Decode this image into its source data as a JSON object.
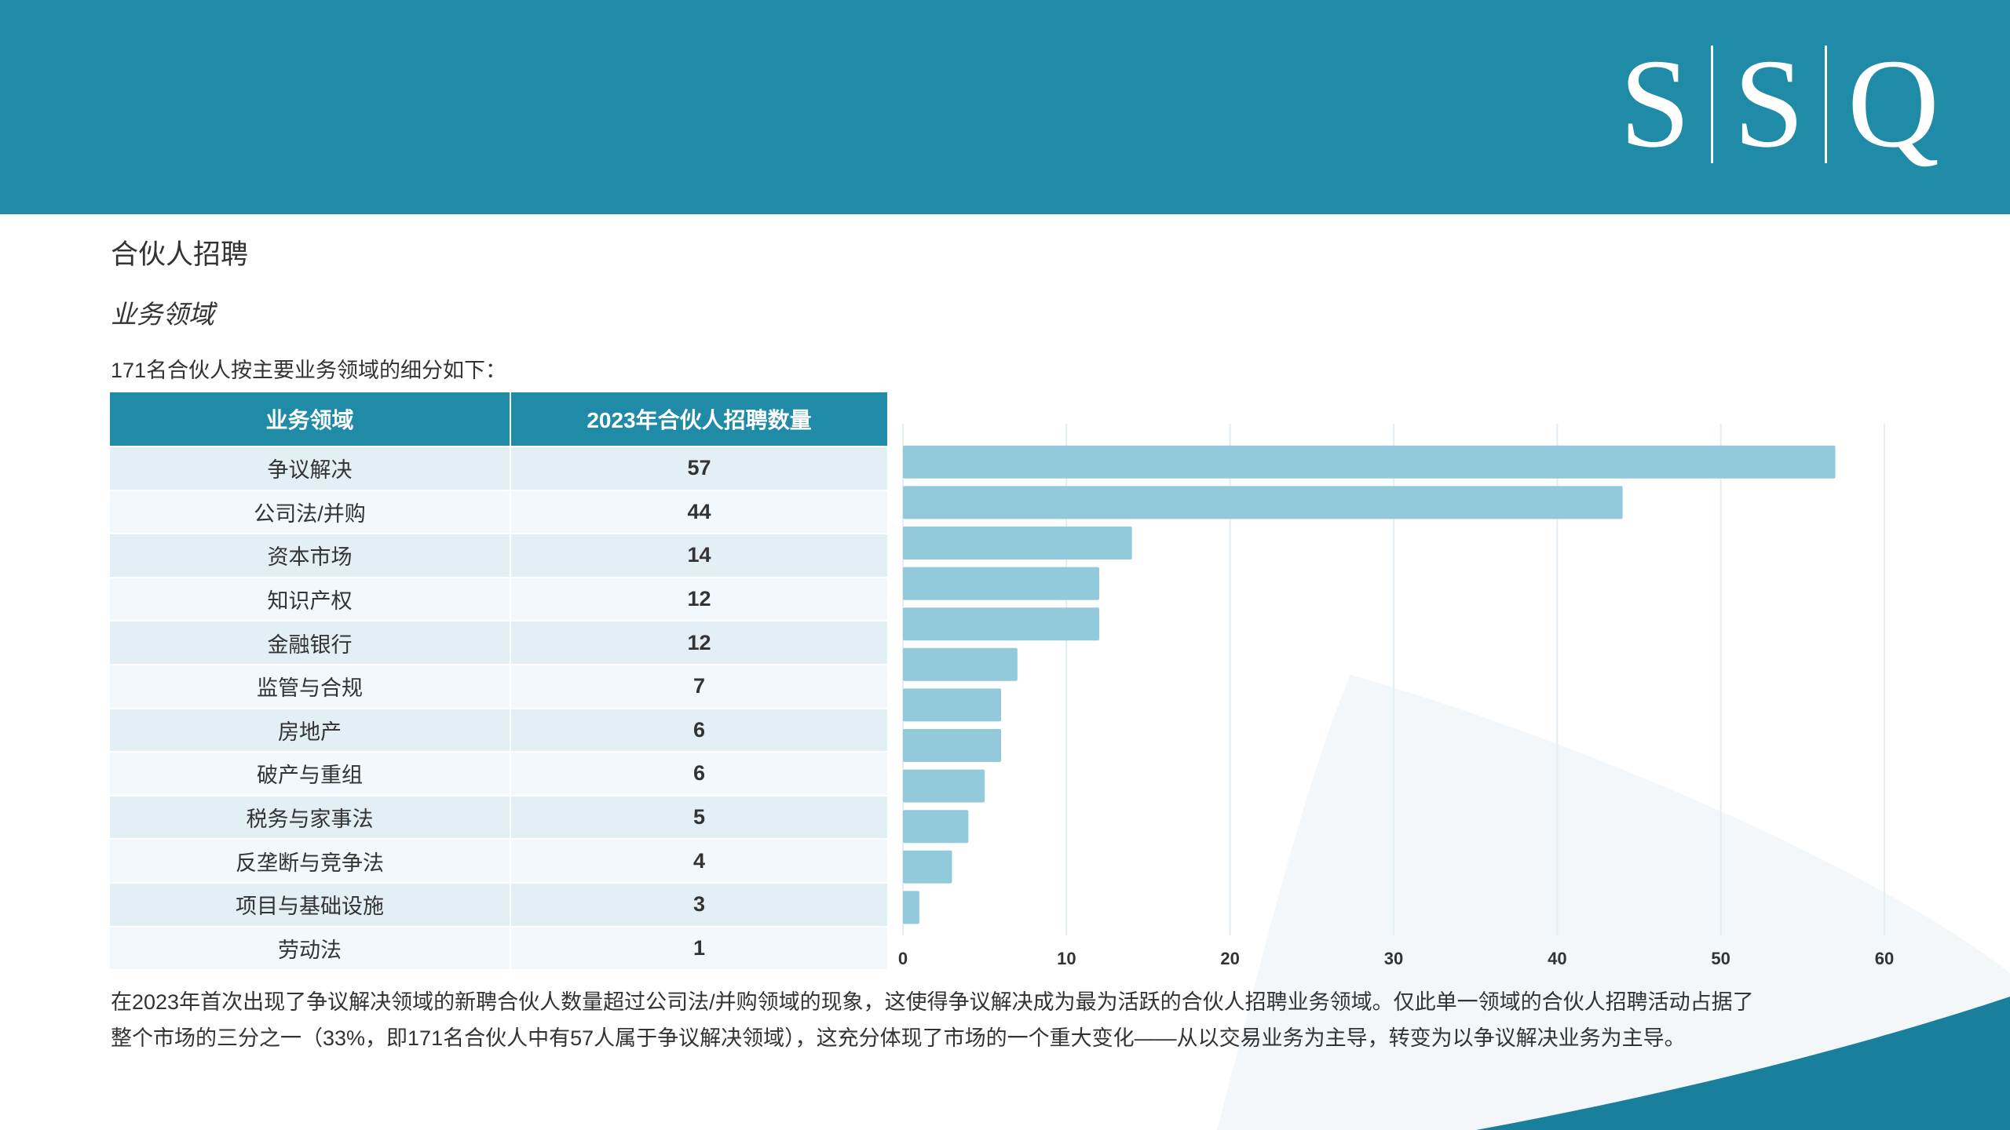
{
  "brand": {
    "letters": [
      "S",
      "S",
      "Q"
    ],
    "header_color": "#1f8ba7"
  },
  "title": "合伙人招聘",
  "subtitle": "业务领域",
  "intro": "171名合伙人按主要业务领域的细分如下：",
  "table": {
    "headers": [
      "业务领域",
      "2023年合伙人招聘数量"
    ],
    "rows": [
      {
        "area": "争议解决",
        "count": "57"
      },
      {
        "area": "公司法/并购",
        "count": "44"
      },
      {
        "area": "资本市场",
        "count": "14"
      },
      {
        "area": "知识产权",
        "count": "12"
      },
      {
        "area": "金融银行",
        "count": "12"
      },
      {
        "area": "监管与合规",
        "count": "7"
      },
      {
        "area": "房地产",
        "count": "6"
      },
      {
        "area": "破产与重组",
        "count": "6"
      },
      {
        "area": "税务与家事法",
        "count": "5"
      },
      {
        "area": "反垄断与竞争法",
        "count": "4"
      },
      {
        "area": "项目与基础设施",
        "count": "3"
      },
      {
        "area": "劳动法",
        "count": "1"
      }
    ]
  },
  "chart_data": {
    "type": "bar",
    "orientation": "horizontal",
    "categories": [
      "争议解决",
      "公司法/并购",
      "资本市场",
      "知识产权",
      "金融银行",
      "监管与合规",
      "房地产",
      "破产与重组",
      "税务与家事法",
      "反垄断与竞争法",
      "项目与基础设施",
      "劳动法"
    ],
    "values": [
      57,
      44,
      14,
      12,
      12,
      7,
      6,
      6,
      5,
      4,
      3,
      1
    ],
    "xlim": [
      0,
      60
    ],
    "xticks": [
      "0",
      "10",
      "20",
      "30",
      "40",
      "50",
      "60"
    ],
    "grid": true,
    "bar_color": "#92cadb",
    "grid_color": "#e3eef3"
  },
  "footnote": {
    "line1": "在2023年首次出现了争议解决领域的新聘合伙人数量超过公司法/并购领域的现象，这使得争议解决成为最为活跃的合伙人招聘业务领域。仅此单一领域的合伙人招聘活动占据了",
    "line2": "整个市场的三分之一（33%，即171名合伙人中有57人属于争议解决领域），这充分体现了市场的一个重大变化——从以交易业务为主导，转变为以争议解决业务为主导。"
  }
}
